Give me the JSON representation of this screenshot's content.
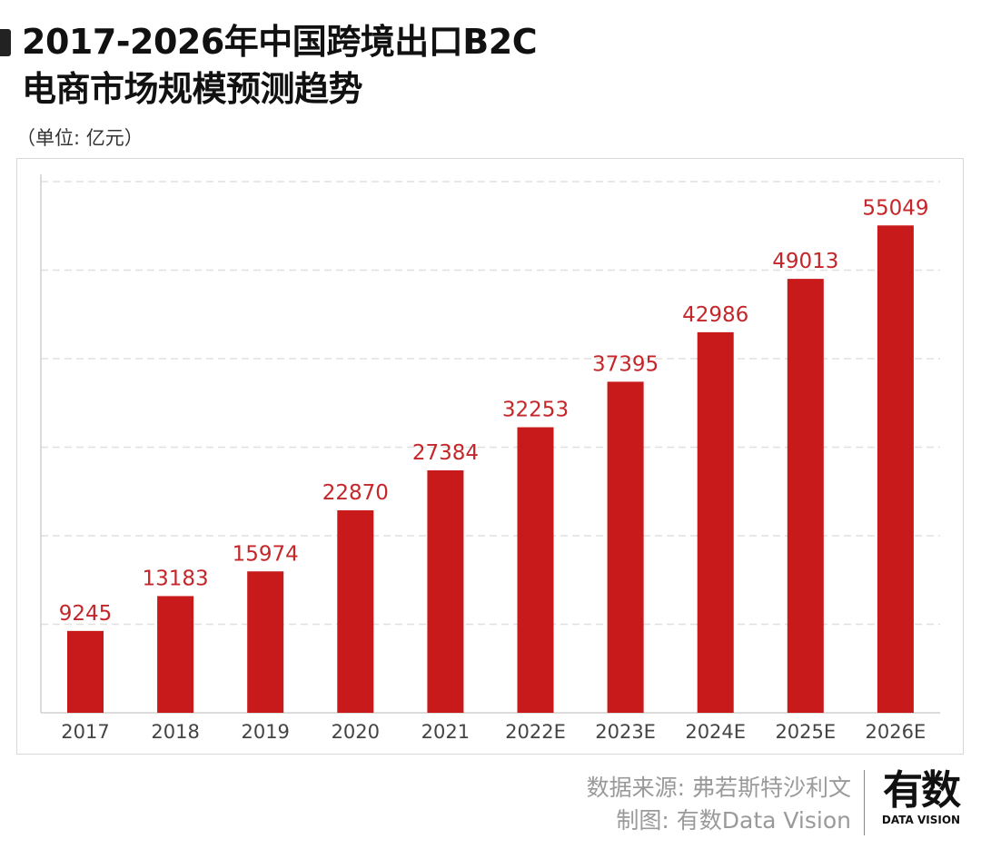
{
  "title_line1": "2017-2026年中国跨境出口B2C",
  "title_line2": "电商市场规模预测趋势",
  "unit": "（单位: 亿元）",
  "source": "数据来源: 弗若斯特沙利文",
  "made_by": "制图: 有数Data Vision",
  "logo": {
    "cn": "有数",
    "en": "DATA VISION"
  },
  "colors": {
    "bar": "#c8191b",
    "label": "#c4262a",
    "grid": "#e0e0e0"
  },
  "chart_data": {
    "type": "bar",
    "title": "2017-2026年中国跨境出口B2C电商市场规模预测趋势",
    "ylabel": "（单位: 亿元）",
    "categories": [
      "2017",
      "2018",
      "2019",
      "2020",
      "2021",
      "2022E",
      "2023E",
      "2024E",
      "2025E",
      "2026E"
    ],
    "values": [
      9245,
      13183,
      15974,
      22870,
      27384,
      32253,
      37395,
      42986,
      49013,
      55049
    ],
    "ylim": [
      0,
      60000
    ],
    "grid": true,
    "y_tick_labels_shown": false
  }
}
